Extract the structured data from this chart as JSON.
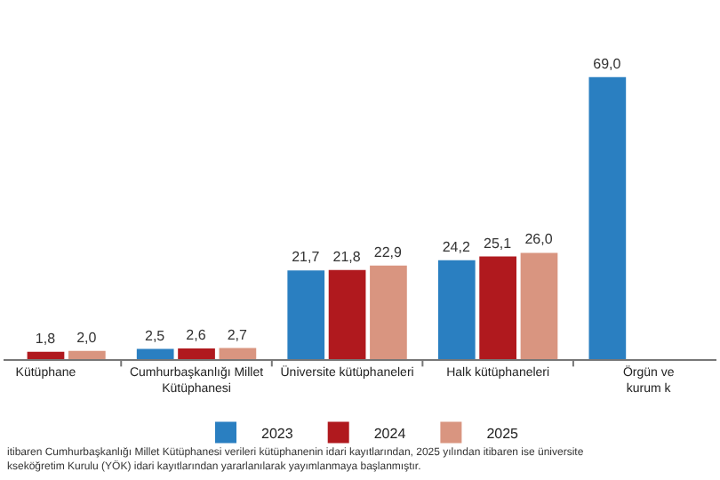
{
  "chart_data": {
    "type": "bar",
    "categories": [
      "Kütüphane",
      "Cumhurbaşkanlığı Millet\nKütüphanesi",
      "Üniversite kütüphaneleri",
      "Halk kütüphaneleri",
      "Örgün ve\nkurum k"
    ],
    "series": [
      {
        "name": "2023",
        "color": "#2a7fc1",
        "values": [
          null,
          2.5,
          21.7,
          24.2,
          69.0
        ],
        "value_labels": [
          null,
          "2,5",
          "21,7",
          "24,2",
          "69,0"
        ]
      },
      {
        "name": "2024",
        "color": "#b0191e",
        "values": [
          1.8,
          2.6,
          21.8,
          25.1,
          null
        ],
        "value_labels": [
          "1,8",
          "2,6",
          "21,8",
          "25,1",
          null
        ]
      },
      {
        "name": "2025",
        "color": "#d99580",
        "values": [
          2.0,
          2.7,
          22.9,
          26.0,
          null
        ],
        "value_labels": [
          "2,0",
          "2,7",
          "22,9",
          "26,0",
          null
        ]
      }
    ],
    "legend": "bottom",
    "annotations": [
      "itibaren Cumhurbaşkanlığı Millet Kütüphanesi verileri kütüphanenin idari kayıtlarından, 2025 yılından itibaren ise üniversite\nkseköğretim Kurulu (YÖK) idari kayıtlarından yararlanılarak yayımlanmaya başlanmıştır."
    ]
  }
}
